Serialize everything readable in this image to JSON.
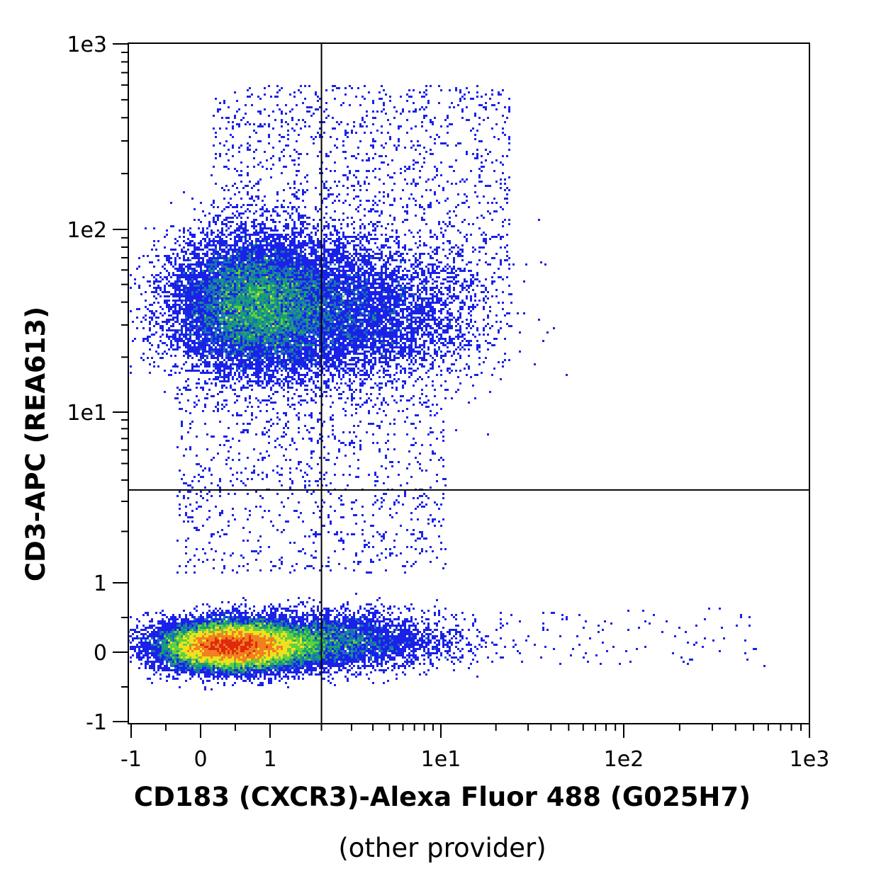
{
  "chart_data": {
    "type": "scatter",
    "subtype": "flow-cytometry-density-dot-plot",
    "x_axis": {
      "label": "CD183 (CXCR3)-Alexa Fluor 488 (G025H7)",
      "sublabel": "(other provider)",
      "scale": "biexponential",
      "range": [
        -1,
        1000
      ],
      "ticks": [
        {
          "value": -1,
          "label": "-1"
        },
        {
          "value": 0,
          "label": "0"
        },
        {
          "value": 1,
          "label": "1"
        },
        {
          "value": 10,
          "label": "1e1"
        },
        {
          "value": 100,
          "label": "1e2"
        },
        {
          "value": 1000,
          "label": "1e3"
        }
      ]
    },
    "y_axis": {
      "label": "CD3-APC (REA613)",
      "scale": "biexponential",
      "range": [
        -1,
        1000
      ],
      "ticks": [
        {
          "value": -1,
          "label": "-1"
        },
        {
          "value": 0,
          "label": "0"
        },
        {
          "value": 1,
          "label": "1"
        },
        {
          "value": 10,
          "label": "1e1"
        },
        {
          "value": 100,
          "label": "1e2"
        },
        {
          "value": 1000,
          "label": "1e3"
        }
      ]
    },
    "quadrant_gates": {
      "x": 2.0,
      "y": 3.5
    },
    "populations": [
      {
        "description": "CD3+ cluster",
        "x_range": [
          -0.5,
          12
        ],
        "y_range": [
          12,
          90
        ],
        "center": [
          0.4,
          40
        ],
        "relative_density": "medium"
      },
      {
        "description": "CD3- cluster",
        "x_range": [
          -0.8,
          6
        ],
        "y_range": [
          -0.4,
          0.5
        ],
        "center": [
          0.3,
          0.1
        ],
        "relative_density": "high"
      }
    ],
    "colors": {
      "background": "#ffffff",
      "low_density": "#1a22e8",
      "mid_density": "#1aa070",
      "high_density": "#f0e020",
      "peak_density": "#e02a10",
      "gate_line": "#000000"
    },
    "grid": false
  }
}
